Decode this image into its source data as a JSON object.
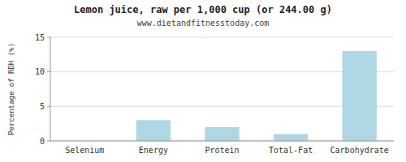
{
  "chart_data": {
    "type": "bar",
    "title": "Lemon juice, raw per 1,000 cup (or 244.00 g)",
    "subtitle": "www.dietandfitnesstoday.com",
    "categories": [
      "Selenium",
      "Energy",
      "Protein",
      "Total-Fat",
      "Carbohydrate"
    ],
    "values": [
      0,
      3.0,
      2.0,
      1.0,
      13.0
    ],
    "color": "#aed6e3",
    "y_label": "Percentage of RDH (%)",
    "ylim": [
      0,
      15
    ],
    "yticks": [
      0,
      5,
      10,
      15
    ],
    "grid": true
  }
}
